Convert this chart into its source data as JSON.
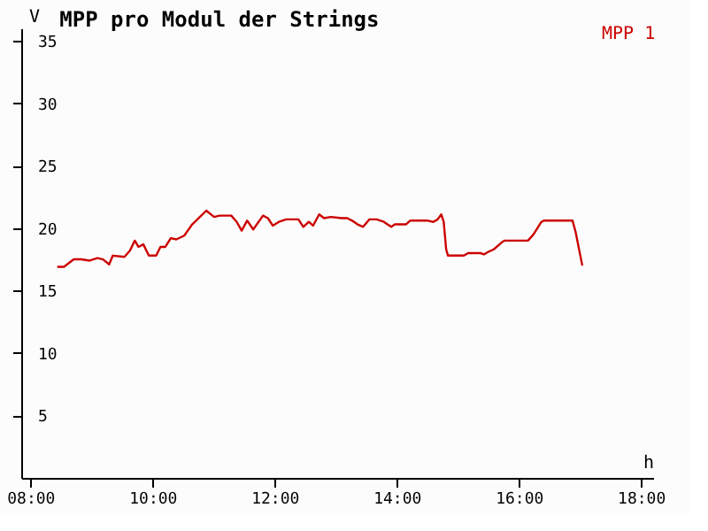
{
  "chart_data": {
    "type": "line",
    "title": "MPP pro Modul der Strings",
    "xlabel": "h",
    "ylabel": "V",
    "xlim": [
      7.85,
      18.2
    ],
    "ylim": [
      0,
      36
    ],
    "xticks": [
      {
        "value": 8,
        "label": "08:00"
      },
      {
        "value": 10,
        "label": "10:00"
      },
      {
        "value": 12,
        "label": "12:00"
      },
      {
        "value": 14,
        "label": "14:00"
      },
      {
        "value": 16,
        "label": "16:00"
      },
      {
        "value": 18,
        "label": "18:00"
      }
    ],
    "yticks": [
      5,
      10,
      15,
      20,
      25,
      30,
      35
    ],
    "grid": false,
    "legend": "top right",
    "marker": "none",
    "line_style": "solid",
    "series": [
      {
        "name": "MPP 1",
        "color": "#cc0000",
        "x": [
          8.44,
          8.55,
          8.71,
          8.83,
          8.97,
          9.1,
          9.19,
          9.29,
          9.35,
          9.54,
          9.63,
          9.71,
          9.77,
          9.85,
          9.94,
          10.06,
          10.13,
          10.21,
          10.3,
          10.39,
          10.52,
          10.65,
          10.88,
          11.01,
          11.1,
          11.29,
          11.38,
          11.46,
          11.55,
          11.65,
          11.81,
          11.89,
          11.97,
          12.07,
          12.19,
          12.3,
          12.39,
          12.47,
          12.56,
          12.63,
          12.73,
          12.81,
          12.92,
          13.1,
          13.19,
          13.27,
          13.36,
          13.45,
          13.55,
          13.67,
          13.79,
          13.91,
          13.97,
          14.15,
          14.22,
          14.51,
          14.6,
          14.67,
          14.73,
          14.77,
          14.81,
          14.84,
          15.1,
          15.17,
          15.37,
          15.43,
          15.5,
          15.59,
          15.73,
          15.77,
          16.15,
          16.24,
          16.37,
          16.41,
          16.88,
          16.93,
          17.04
        ],
        "values": [
          16.9,
          16.9,
          17.5,
          17.5,
          17.4,
          17.6,
          17.5,
          17.1,
          17.8,
          17.7,
          18.2,
          19.0,
          18.5,
          18.7,
          17.8,
          17.8,
          18.5,
          18.5,
          19.2,
          19.1,
          19.4,
          20.3,
          21.4,
          20.9,
          21.0,
          21.0,
          20.5,
          19.8,
          20.6,
          19.9,
          21.0,
          20.8,
          20.2,
          20.5,
          20.7,
          20.7,
          20.7,
          20.1,
          20.5,
          20.2,
          21.1,
          20.8,
          20.9,
          20.8,
          20.8,
          20.6,
          20.3,
          20.1,
          20.7,
          20.7,
          20.5,
          20.1,
          20.3,
          20.3,
          20.6,
          20.6,
          20.5,
          20.7,
          21.1,
          20.5,
          18.3,
          17.8,
          17.8,
          18.0,
          18.0,
          17.9,
          18.1,
          18.3,
          18.9,
          19.0,
          19.0,
          19.5,
          20.5,
          20.6,
          20.6,
          19.7,
          17.0
        ]
      }
    ]
  }
}
